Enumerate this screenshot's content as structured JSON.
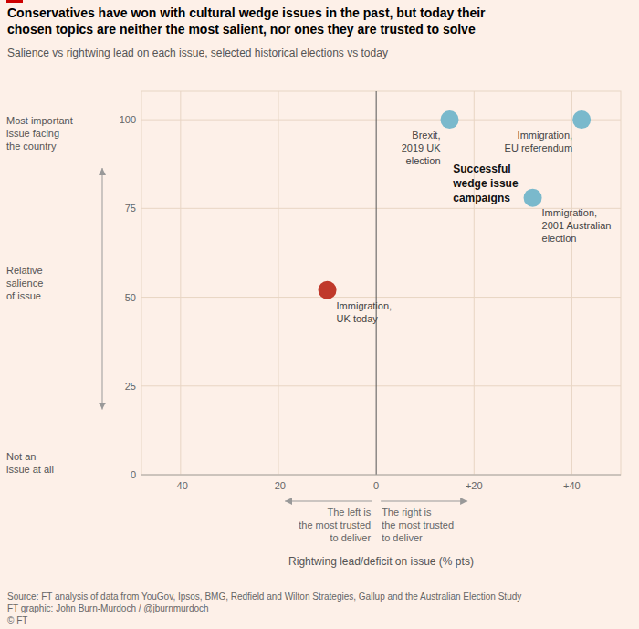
{
  "chart_data": {
    "type": "scatter",
    "title": "Conservatives have won with cultural wedge issues in the past, but today their\nchosen topics are neither the most salient, nor ones they are trusted to solve",
    "subtitle": "Salience vs rightwing lead on each issue, selected historical elections vs today",
    "x": [
      15,
      42,
      32,
      -10
    ],
    "values": [
      100,
      100,
      78,
      52
    ],
    "colors": [
      "#7ab9cc",
      "#7ab9cc",
      "#7ab9cc",
      "#c0392b"
    ],
    "point_labels": [
      "Brexit,\n2019 UK\nelection",
      "Immigration,\nEU referendum",
      "Immigration,\n2001 Australian\nelection",
      "Immigration,\nUK today"
    ],
    "annotation": "Successful\nwedge issue\ncampaigns",
    "xlabel": "Rightwing lead/deficit on issue (% pts)",
    "ylabel_top": "Most important\nissue facing\nthe country",
    "ylabel_mid": "Relative\nsalience\nof issue",
    "ylabel_bottom": "Not an\nissue at all",
    "left_note": "The left is\nthe most trusted\nto deliver",
    "right_note": "The right is\nthe most trusted\nto deliver",
    "source": "Source: FT analysis of data from YouGov, Ipsos, BMG, Redfield and Wilton Strategies, Gallup and the Australian Election Study\nFT graphic: John Burn-Murdoch / @jburnmurdoch\n© FT",
    "xlim": [
      -48,
      50
    ],
    "ylim": [
      0,
      108
    ],
    "xticks": [
      -40,
      -20,
      0,
      {
        "value": 20,
        "label": "+20"
      },
      {
        "value": 40,
        "label": "+40"
      }
    ],
    "yticks": [
      0,
      25,
      50,
      75,
      100
    ],
    "grid": true
  }
}
